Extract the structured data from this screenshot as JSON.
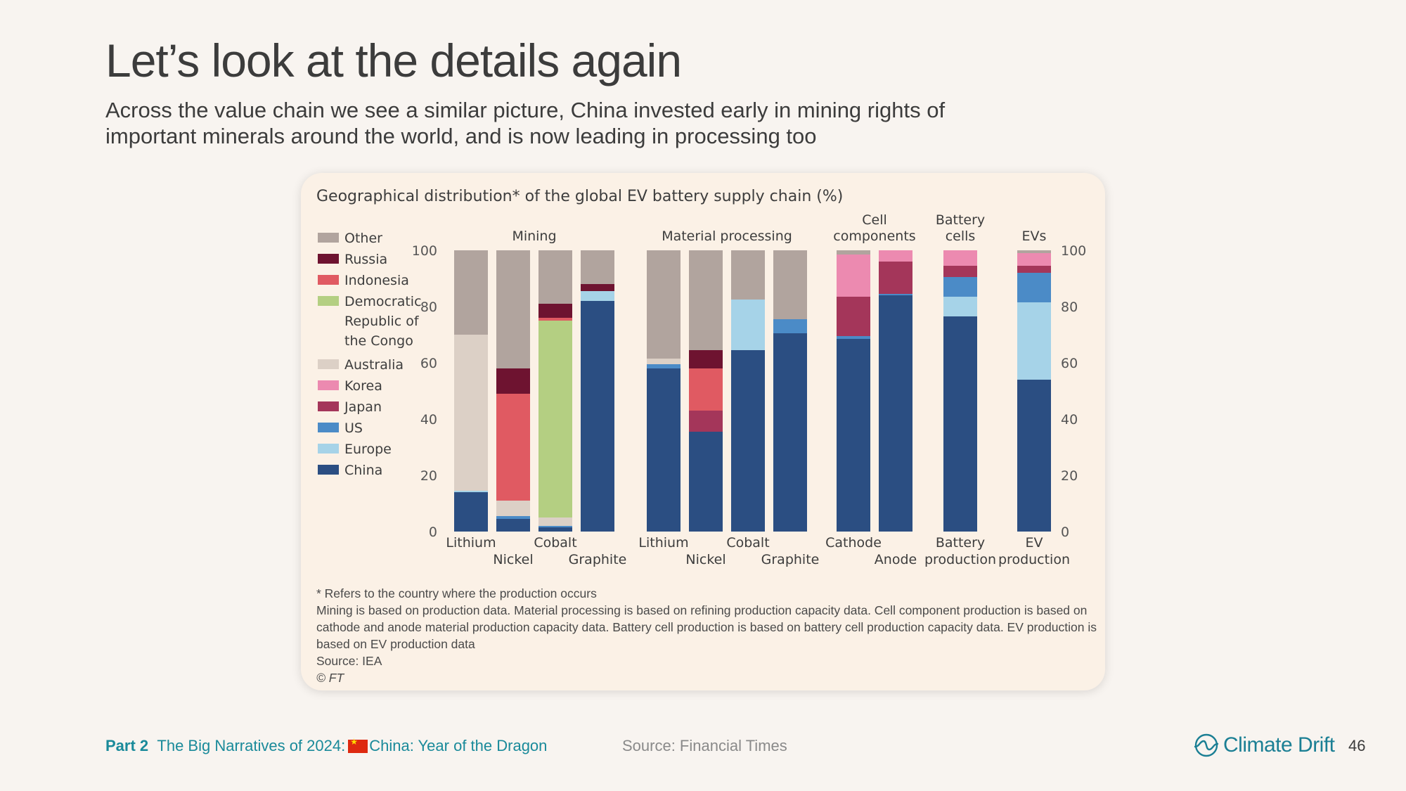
{
  "slide": {
    "title": "Let’s look at the details again",
    "subtitle": "Across the value chain we see a similar picture, China invested early in mining rights of important minerals around the world, and is now leading in processing too"
  },
  "footer": {
    "part_label": "Part 2",
    "part_title_prefix": "The Big Narratives of 2024:",
    "part_title_suffix": "China: Year of the Dragon",
    "source": "Source: Financial Times",
    "brand": "Climate Drift",
    "page": "46"
  },
  "notes": {
    "asterisk": "* Refers to the country where the production occurs",
    "methodology": "Mining is based on production data. Material processing is based on refining production capacity data. Cell component production is based on cathode and anode material production capacity data. Battery cell production is based on battery cell production capacity data. EV production is based on EV production data",
    "source": "Source: IEA",
    "copyright": "© FT"
  },
  "colors": {
    "China": "#2b4e82",
    "Europe": "#a6d3e8",
    "US": "#4b8bc7",
    "Japan": "#a4365a",
    "Korea": "#ec8ab0",
    "Australia": "#dcd0c6",
    "Democratic Republic of the Congo": "#b4cf82",
    "Indonesia": "#e05a62",
    "Russia": "#6e1330",
    "Other": "#b1a49e"
  },
  "chart_data": {
    "type": "bar",
    "stacked": true,
    "title": "Geographical distribution* of the global EV battery supply chain (%)",
    "ylim": [
      0,
      100
    ],
    "yticks": [
      0,
      20,
      40,
      60,
      80,
      100
    ],
    "grid": false,
    "legend_position": "left",
    "legend": [
      "Other",
      "Russia",
      "Indonesia",
      "Democratic Republic of the Congo",
      "Australia",
      "Korea",
      "Japan",
      "US",
      "Europe",
      "China"
    ],
    "groups": [
      {
        "label": "Mining",
        "bars": [
          {
            "category": "Lithium",
            "segments": {
              "China": 14,
              "Europe": 0.5,
              "Australia": 55.5,
              "Other": 30
            }
          },
          {
            "category": "Nickel",
            "segments": {
              "China": 4.5,
              "US": 1,
              "Australia": 5.5,
              "Indonesia": 38,
              "Russia": 9,
              "Other": 42
            }
          },
          {
            "category": "Cobalt",
            "segments": {
              "China": 1.5,
              "US": 0.5,
              "Australia": 3,
              "Democratic Republic of the Congo": 70,
              "Indonesia": 1,
              "Russia": 5,
              "Other": 19
            }
          },
          {
            "category": "Graphite",
            "segments": {
              "China": 82,
              "Europe": 3.5,
              "Russia": 2.5,
              "Other": 12
            }
          }
        ]
      },
      {
        "label": "Material processing",
        "bars": [
          {
            "category": "Lithium",
            "segments": {
              "China": 58,
              "US": 1.5,
              "Australia": 2,
              "Other": 38.5
            }
          },
          {
            "category": "Nickel",
            "segments": {
              "China": 35.5,
              "Japan": 7.5,
              "Indonesia": 15,
              "Russia": 6.5,
              "Other": 35.5
            }
          },
          {
            "category": "Cobalt",
            "segments": {
              "China": 64.5,
              "Europe": 18,
              "Other": 17.5
            }
          },
          {
            "category": "Graphite",
            "segments": {
              "China": 70.5,
              "US": 5,
              "Other": 24.5
            }
          }
        ]
      },
      {
        "label": "Cell components",
        "bars": [
          {
            "category": "Cathode",
            "segments": {
              "China": 68.5,
              "US": 1,
              "Japan": 14,
              "Korea": 15,
              "Other": 1.5
            }
          },
          {
            "category": "Anode",
            "segments": {
              "China": 84,
              "US": 0.5,
              "Japan": 11.5,
              "Korea": 4
            }
          }
        ]
      },
      {
        "label": "Battery cells",
        "bars": [
          {
            "category": "Battery production",
            "segments": {
              "China": 76.5,
              "Europe": 7,
              "US": 7,
              "Japan": 4,
              "Korea": 5.5
            }
          }
        ]
      },
      {
        "label": "EVs",
        "bars": [
          {
            "category": "EV production",
            "segments": {
              "China": 54,
              "Europe": 27.5,
              "US": 10.5,
              "Japan": 2.5,
              "Korea": 4.5,
              "Other": 1
            }
          }
        ]
      }
    ]
  }
}
